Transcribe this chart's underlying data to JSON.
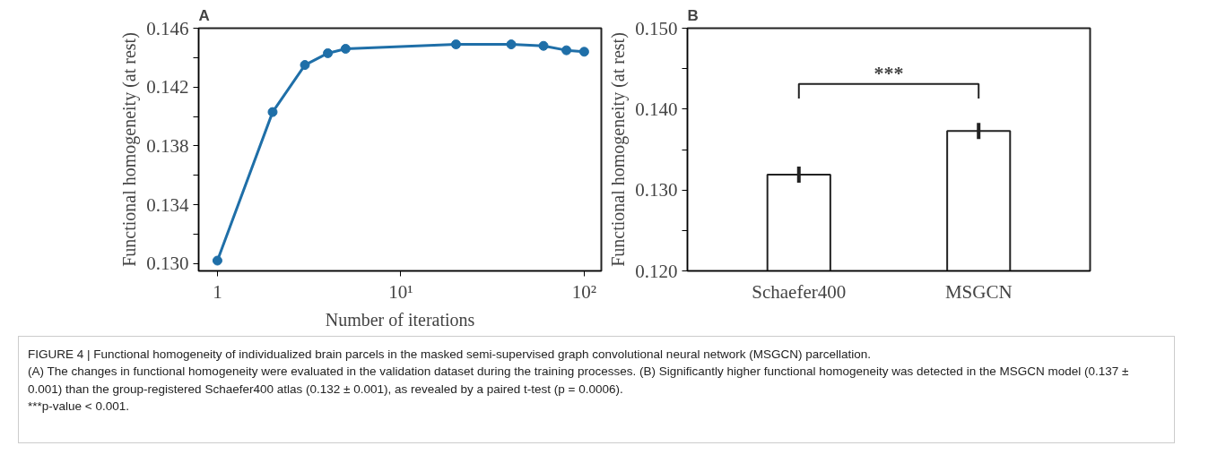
{
  "chart_data": [
    {
      "type": "line",
      "title": "A",
      "xlabel": "Number of iterations",
      "ylabel": "Functional homogeneity (at rest)",
      "log": "x",
      "x": [
        1,
        2,
        3,
        4,
        5,
        20,
        40,
        60,
        80,
        100
      ],
      "series": [
        {
          "color": "#1f6fa8",
          "values": [
            0.1302,
            0.1403,
            0.1435,
            0.1443,
            0.1446,
            0.1449,
            0.1449,
            0.1448,
            0.1445,
            0.1444
          ]
        }
      ],
      "xlim": [
        0.79,
        124
      ],
      "xticks": [
        1,
        {
          "value": 10,
          "label": "10¹"
        },
        {
          "value": 100,
          "label": "10²"
        }
      ],
      "ylim": [
        0.1295,
        0.146
      ],
      "yticks": [
        {
          "value": 0.13,
          "label": "0.130"
        },
        {
          "value": 0.132,
          "label": null
        },
        {
          "value": 0.134,
          "label": "0.134"
        },
        {
          "value": 0.136,
          "label": null
        },
        {
          "value": 0.138,
          "label": "0.138"
        },
        {
          "value": 0.14,
          "label": null
        },
        {
          "value": 0.142,
          "label": "0.142"
        },
        {
          "value": 0.144,
          "label": null
        },
        {
          "value": 0.146,
          "label": "0.146"
        }
      ],
      "marker": "circle",
      "line_style": "solid",
      "grid": false,
      "annotations": [
        "FIGURE 4 | Functional homogeneity of individualized brain parcels in the masked semi-supervised graph convolutional neural network (MSGCN) parcellation.",
        "(A) The changes in functional homogeneity were evaluated in the validation dataset during the training processes. (B) Significantly higher functional homogeneity was detected in the MSGCN model (0.137 ± 0.001) than the group-registered Schaefer400 atlas (0.132 ± 0.001), as revealed by a paired t-test (p = 0.0006).",
        "***p-value < 0.001."
      ]
    },
    {
      "type": "bar",
      "title": "B",
      "ylabel": "Functional homogeneity (at rest)",
      "categories": [
        "Schaefer400",
        "MSGCN"
      ],
      "values": [
        0.1319,
        0.1373
      ],
      "errors": [
        0.001,
        0.001
      ],
      "color": "#ffffff",
      "ylim": [
        0.12,
        0.15
      ],
      "yticks": [
        {
          "value": 0.12,
          "label": "0.120"
        },
        {
          "value": 0.125,
          "label": null
        },
        {
          "value": 0.13,
          "label": "0.130"
        },
        {
          "value": 0.135,
          "label": null
        },
        {
          "value": 0.14,
          "label": "0.140"
        },
        {
          "value": 0.145,
          "label": null
        },
        {
          "value": 0.15,
          "label": "0.150"
        }
      ],
      "grid": false,
      "annotations": [
        "***"
      ]
    }
  ]
}
